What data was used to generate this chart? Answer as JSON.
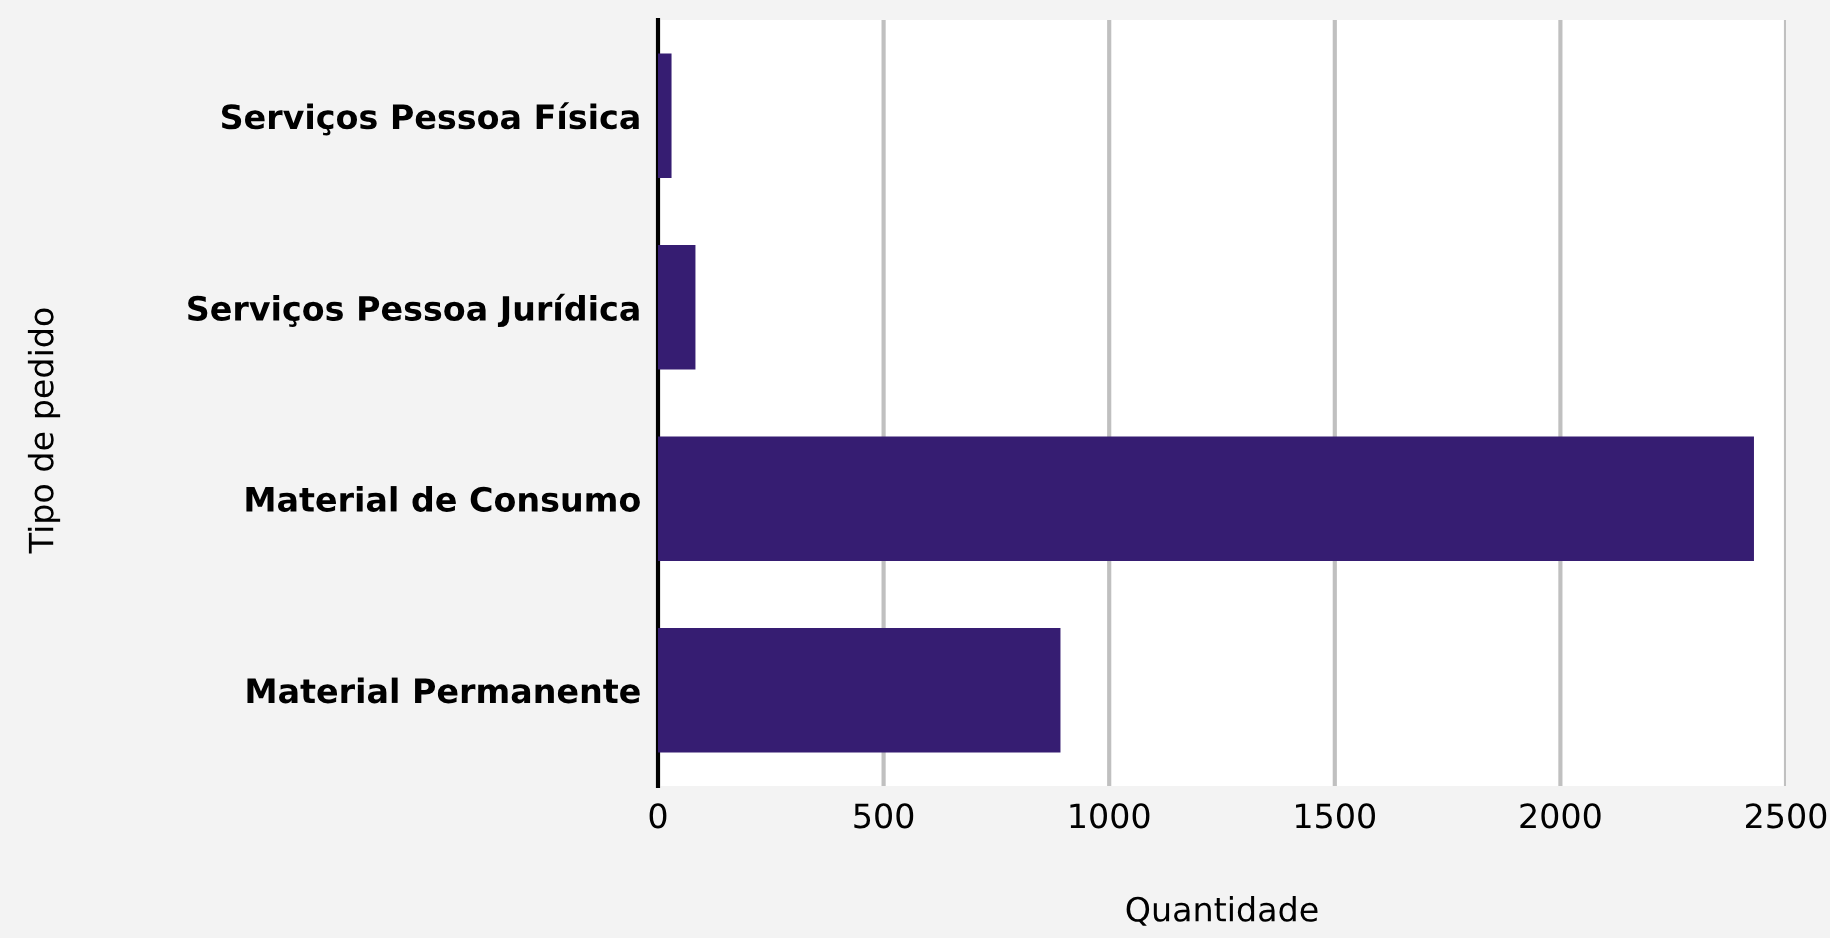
{
  "chart_data": {
    "type": "bar",
    "orientation": "horizontal",
    "xlabel": "Quantidade",
    "ylabel": "Tipo de pedido",
    "categories": [
      "Serviços Pessoa Física",
      "Serviços Pessoa Jurídica",
      "Material de Consumo",
      "Material Permanente"
    ],
    "values": [
      30,
      83,
      2429,
      892
    ],
    "color": "#361d72",
    "xlim": [
      0,
      2500
    ],
    "xticks": [
      0,
      500,
      1000,
      1500,
      2000,
      2500
    ],
    "grid": "x",
    "legend": false
  }
}
